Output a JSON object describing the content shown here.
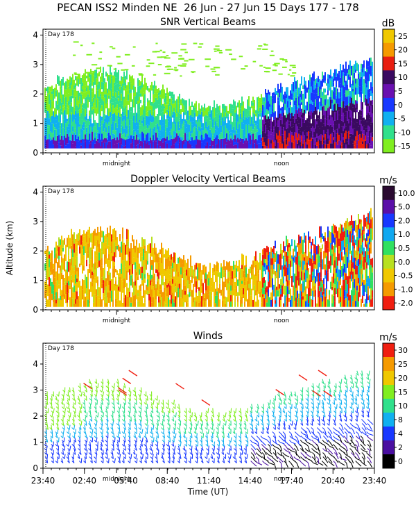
{
  "header": {
    "title": "PECAN ISS2 Minden NE  26 Jun - 27 Jun 15 Days 177 - 178"
  },
  "chart_data": [
    {
      "type": "heatmap",
      "title": "SNR Vertical Beams",
      "ylabel": "",
      "ylim": [
        0,
        4.2
      ],
      "yticks": [
        "0",
        "1",
        "2",
        "3",
        "4"
      ],
      "day_label": "Day 178",
      "markers": [
        "midnight",
        "noon"
      ],
      "colorbar": {
        "unit": "dB",
        "labels": [
          "25",
          "20",
          "15",
          "10",
          "5",
          "0",
          "-5",
          "-10",
          "-15"
        ],
        "colors": [
          "#f0c800",
          "#f59a00",
          "#e81e10",
          "#3a0a60",
          "#6a10b0",
          "#1838ff",
          "#10b0f0",
          "#30e08c",
          "#80ee20"
        ]
      }
    },
    {
      "type": "heatmap",
      "title": "Doppler Velocity Vertical Beams",
      "ylabel": "Altitude (km)",
      "ylim": [
        0,
        4.2
      ],
      "yticks": [
        "0",
        "1",
        "2",
        "3",
        "4"
      ],
      "day_label": "Day 178",
      "markers": [
        "midnight",
        "noon"
      ],
      "colorbar": {
        "unit": "m/s",
        "labels": [
          "10.0",
          "5.0",
          "2.0",
          "1.0",
          "0.5",
          "0.0",
          "-0.5",
          "-1.0",
          "-2.0"
        ],
        "colors": [
          "#2a0a30",
          "#5a0fa8",
          "#1838ff",
          "#10a8f0",
          "#30e060",
          "#b8e020",
          "#f0c800",
          "#f59a00",
          "#f01e10"
        ]
      }
    },
    {
      "type": "wind-barbs",
      "title": "Winds",
      "ylim": [
        0,
        4.8
      ],
      "yticks": [
        "0",
        "1",
        "2",
        "3",
        "4"
      ],
      "day_label": "Day 178",
      "markers": [
        "midnight",
        "noon"
      ],
      "xlabel": "Time (UT)",
      "xticks": [
        "23:40",
        "02:40",
        "05:40",
        "08:40",
        "11:40",
        "14:40",
        "17:40",
        "20:40",
        "23:40"
      ],
      "colorbar": {
        "unit": "m/s",
        "labels": [
          "30",
          "25",
          "20",
          "15",
          "10",
          "8",
          "4",
          "2",
          "0"
        ],
        "colors": [
          "#f01e10",
          "#f59a00",
          "#f0c800",
          "#80ee20",
          "#30e08c",
          "#10b0f0",
          "#1838ff",
          "#4a0fa0",
          "#000000"
        ]
      }
    }
  ]
}
